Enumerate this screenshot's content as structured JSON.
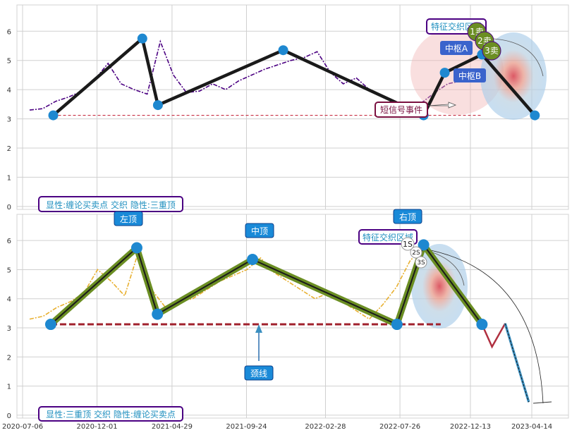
{
  "chart_data": [
    {
      "type": "line",
      "ylim": [
        -0.1,
        6.9
      ],
      "yticks": [
        0,
        1,
        2,
        3,
        4,
        5,
        6
      ],
      "grid": true,
      "series": [
        {
          "values": [
            3.3,
            3.35,
            3.6,
            3.75,
            3.95,
            4.35,
            4.9,
            4.2,
            4.0,
            3.85,
            5.65,
            4.5,
            3.9,
            3.95,
            4.2,
            4.0,
            4.3,
            4.5,
            4.7,
            4.85,
            5.0,
            5.1,
            5.3,
            4.6,
            4.2,
            4.4,
            4.0,
            3.8,
            3.6,
            3.3,
            3.55,
            3.9,
            4.2,
            4.3,
            4.4
          ]
        }
      ],
      "pivots": [
        {
          "date": "2020-09-05",
          "value": 3.12
        },
        {
          "date": "2021-03-01",
          "value": 5.75
        },
        {
          "date": "2021-04-01",
          "value": 3.47
        },
        {
          "date": "2021-12-06",
          "value": 5.35
        },
        {
          "date": "2022-09-11",
          "value": 3.12
        },
        {
          "date": "2022-10-23",
          "value": 4.58
        },
        {
          "date": "2023-01-05",
          "value": 5.2
        },
        {
          "date": "2023-04-20",
          "value": 3.12
        }
      ],
      "neckline": 3.12,
      "annotations": {
        "feature_zone": "特征交织区域",
        "buy1": "1卖",
        "buy2": "2卖",
        "buy3": "3卖",
        "pivot_a": "中枢A",
        "pivot_b": "中枢B",
        "short_signal": "短信号事件",
        "caption": "显性:缠论买卖点 交织 隐性:三重顶"
      }
    },
    {
      "type": "line",
      "ylim": [
        -0.1,
        6.9
      ],
      "yticks": [
        0,
        1,
        2,
        3,
        4,
        5,
        6
      ],
      "xticks": [
        "2020-07-06",
        "2020-12-01",
        "2021-04-29",
        "2021-09-24",
        "2022-02-28",
        "2022-07-26",
        "2022-12-13",
        "2023-04-14"
      ],
      "grid": true,
      "series": [
        {
          "values": [
            3.3,
            3.4,
            3.7,
            3.9,
            4.2,
            5.0,
            4.6,
            4.1,
            5.6,
            4.3,
            3.7,
            3.9,
            4.0,
            4.3,
            4.6,
            4.8,
            5.0,
            5.4,
            4.9,
            4.6,
            4.3,
            4.0,
            4.2,
            3.9,
            3.6,
            3.3,
            3.8,
            4.4,
            5.3,
            5.8
          ]
        }
      ],
      "pivots": [
        {
          "date": "2020-08-31",
          "value": 3.12
        },
        {
          "date": "2021-02-18",
          "value": 5.75
        },
        {
          "date": "2021-03-31",
          "value": 3.47
        },
        {
          "date": "2021-10-06",
          "value": 5.35
        },
        {
          "date": "2022-07-20",
          "value": 3.12
        },
        {
          "date": "2022-09-11",
          "value": 5.85
        },
        {
          "date": "2023-01-05",
          "value": 3.12
        }
      ],
      "projection": [
        {
          "date": "2023-01-05",
          "value": 3.12
        },
        {
          "date": "2023-01-25",
          "value": 2.35
        },
        {
          "date": "2023-02-20",
          "value": 3.15
        },
        {
          "date": "2023-04-08",
          "value": 0.45
        }
      ],
      "neckline": 3.12,
      "annotations": {
        "left_top": "左顶",
        "mid_top": "中顶",
        "right_top": "右顶",
        "neckline": "颈线",
        "feature_zone": "特征交织区域",
        "sell1": "1S",
        "sell2": "2S",
        "sell3": "3S",
        "caption": "显性:三重顶 交织 隐性:缠论买卖点"
      }
    }
  ]
}
